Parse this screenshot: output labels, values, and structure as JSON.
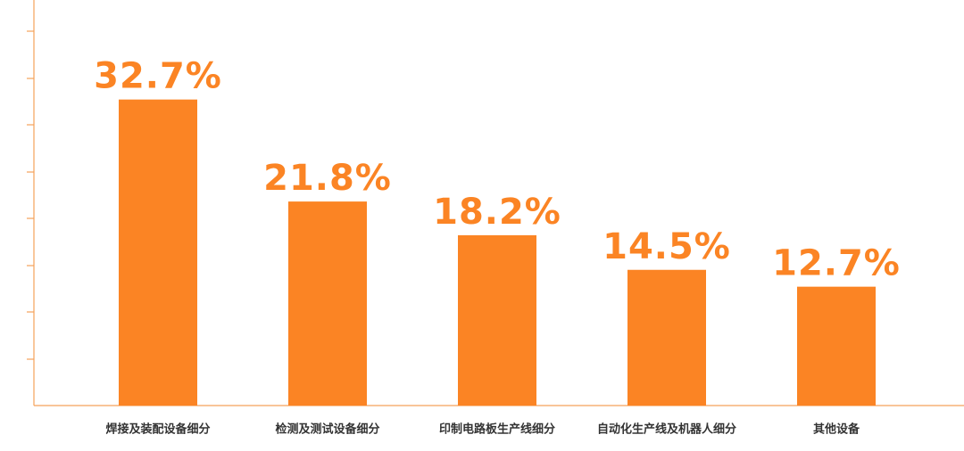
{
  "chart_data": {
    "type": "bar",
    "categories": [
      "焊接及装配设备细分",
      "检测及测试设备细分",
      "印制电路板生产线细分",
      "自动化生产线及机器人细分",
      "其他设备"
    ],
    "values": [
      32.7,
      21.8,
      18.2,
      14.5,
      12.7
    ],
    "value_labels": [
      "32.7%",
      "21.8%",
      "18.2%",
      "14.5%",
      "12.7%"
    ],
    "color": "#fb8424",
    "ylim": [
      0,
      40
    ]
  }
}
